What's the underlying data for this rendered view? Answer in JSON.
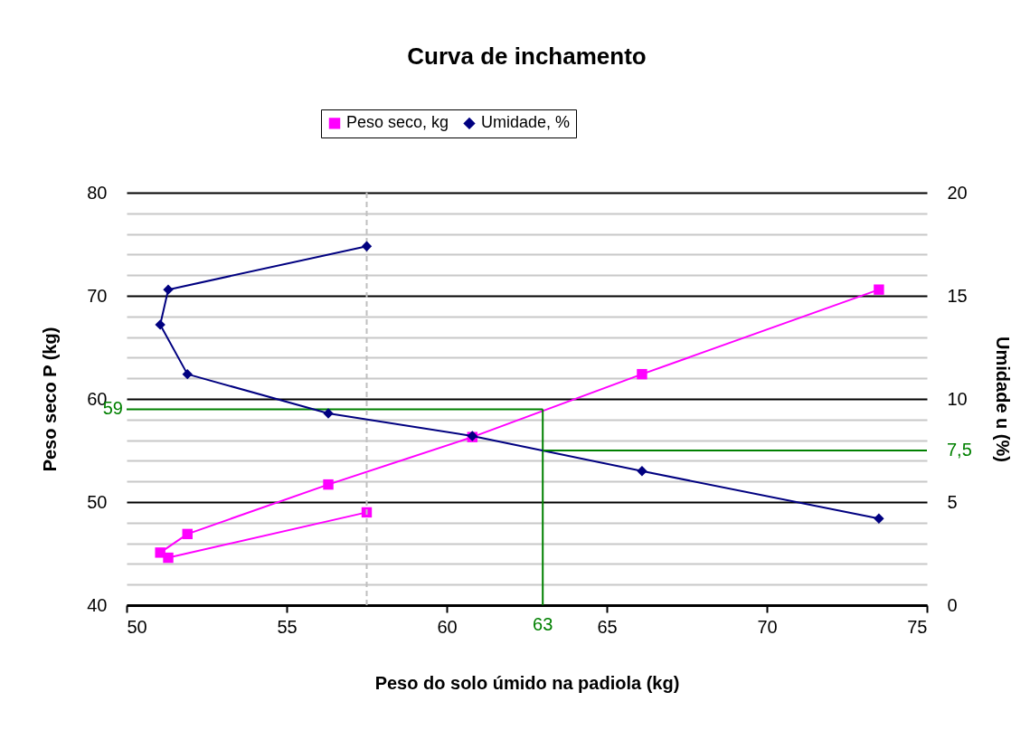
{
  "chart_data": {
    "type": "line",
    "title": "Curva de inchamento",
    "xlabel": "Peso do solo úmido na padiola (kg)",
    "ylabel": "Peso seco P (kg)",
    "y2label": "Umidade u (%)",
    "x": [
      57.5,
      51.3,
      51.05,
      51.9,
      56.3,
      60.8,
      66.1,
      73.5
    ],
    "series": [
      {
        "name": "Peso seco, kg",
        "color": "#ff00ff",
        "marker": "square",
        "values": [
          49.0,
          44.6,
          45.1,
          46.9,
          51.7,
          56.3,
          62.4,
          70.6
        ]
      },
      {
        "name": "Umidade, %",
        "color": "#000080",
        "marker": "diamond",
        "axis": "y2",
        "values": [
          17.4,
          15.3,
          13.6,
          11.2,
          9.3,
          8.2,
          6.5,
          4.2
        ]
      }
    ],
    "xlim": [
      50,
      75
    ],
    "xticks": [
      50,
      55,
      60,
      65,
      70,
      75
    ],
    "ylim": [
      40,
      80
    ],
    "yticks": [
      40,
      {
        "value": 42,
        "label": null
      },
      {
        "value": 44,
        "label": null
      },
      {
        "value": 46,
        "label": null
      },
      {
        "value": 48,
        "label": null
      },
      50,
      {
        "value": 52,
        "label": null
      },
      {
        "value": 54,
        "label": null
      },
      {
        "value": 56,
        "label": null
      },
      {
        "value": 58,
        "label": null
      },
      60,
      {
        "value": 62,
        "label": null
      },
      {
        "value": 64,
        "label": null
      },
      {
        "value": 66,
        "label": null
      },
      {
        "value": 68,
        "label": null
      },
      70,
      {
        "value": 72,
        "label": null
      },
      {
        "value": 74,
        "label": null
      },
      {
        "value": 76,
        "label": null
      },
      {
        "value": 78,
        "label": null
      },
      80
    ],
    "y2lim": [
      0,
      20
    ],
    "y2ticks": [
      0,
      5,
      10,
      15,
      20
    ],
    "grid": "y",
    "legend": "top",
    "ref_lines": [
      {
        "axis": "y",
        "value": 59,
        "label": "59",
        "color": "#008000"
      },
      {
        "axis": "x",
        "value": 63,
        "label": "63",
        "color": "#008000"
      },
      {
        "axis": "y2",
        "value": 7.5,
        "label": "7,5",
        "color": "#008000"
      },
      {
        "axis": "x",
        "value": 57.5,
        "label": null,
        "color": "#c0c0c0",
        "line_style": "dashed"
      }
    ]
  }
}
